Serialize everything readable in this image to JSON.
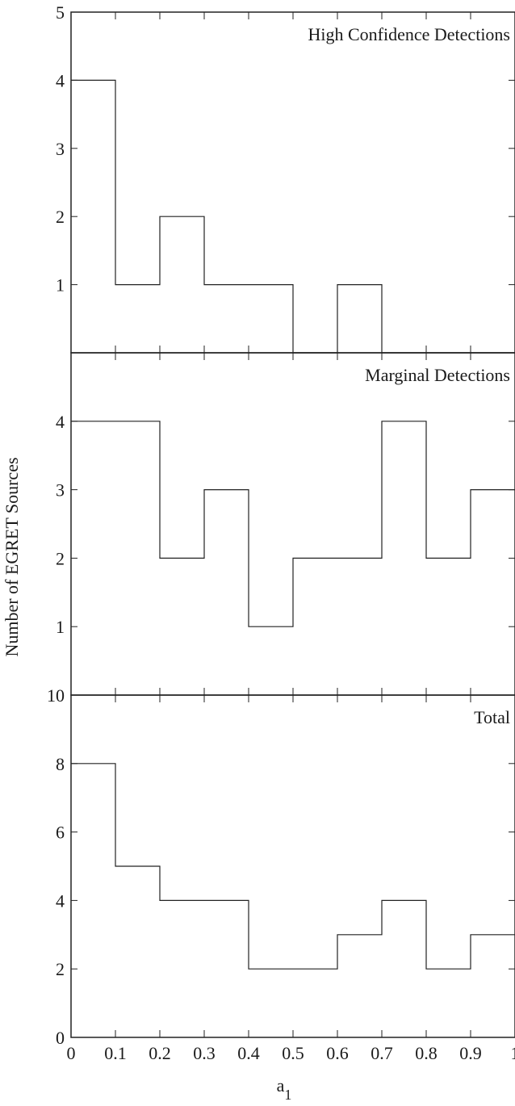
{
  "chart_data": [
    {
      "type": "bar",
      "title": "High Confidence Detections",
      "bin_edges": [
        0,
        0.1,
        0.2,
        0.3,
        0.4,
        0.5,
        0.6,
        0.7,
        0.8,
        0.9,
        1.0
      ],
      "values": [
        4,
        1,
        2,
        1,
        1,
        0,
        1,
        0,
        0,
        0
      ],
      "ylim": [
        0,
        5
      ],
      "yticks": [
        "1",
        "2",
        "3",
        "4",
        "5"
      ]
    },
    {
      "type": "bar",
      "title": "Marginal Detections",
      "bin_edges": [
        0,
        0.1,
        0.2,
        0.3,
        0.4,
        0.5,
        0.6,
        0.7,
        0.8,
        0.9,
        1.0
      ],
      "values": [
        4,
        4,
        2,
        3,
        1,
        2,
        2,
        4,
        2,
        3
      ],
      "ylim": [
        0,
        5
      ],
      "yticks": [
        "1",
        "2",
        "3",
        "4"
      ]
    },
    {
      "type": "bar",
      "title": "Total",
      "bin_edges": [
        0,
        0.1,
        0.2,
        0.3,
        0.4,
        0.5,
        0.6,
        0.7,
        0.8,
        0.9,
        1.0
      ],
      "values": [
        8,
        5,
        4,
        4,
        2,
        2,
        3,
        4,
        2,
        3
      ],
      "ylim": [
        0,
        10
      ],
      "yticks": [
        "0",
        "2",
        "4",
        "6",
        "8",
        "10"
      ]
    }
  ],
  "axes": {
    "ylabel": "Number of EGRET Sources",
    "xlabel_main": "a",
    "xlabel_sub": "1",
    "xticks": [
      "0",
      "0.1",
      "0.2",
      "0.3",
      "0.4",
      "0.5",
      "0.6",
      "0.7",
      "0.8",
      "0.9",
      "1"
    ]
  }
}
